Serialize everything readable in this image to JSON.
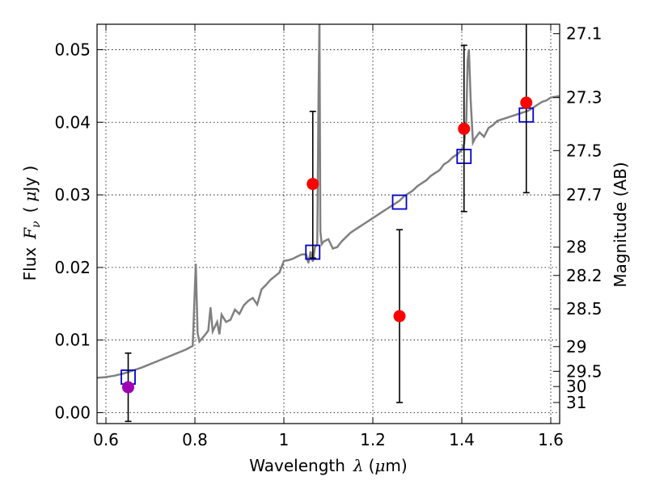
{
  "chart_data": {
    "type": "scatter",
    "xlabel": "Wavelength",
    "xlabel_symbol": "λ",
    "xlabel_unit_open": "(",
    "xlabel_unit_mu": "μ",
    "xlabel_unit_rest": "m)",
    "ylabel_prefix": "Flux",
    "ylabel_symbol": "F",
    "ylabel_sub": "ν",
    "ylabel_unit_open": "(",
    "ylabel_unit_mu": "μ",
    "ylabel_unit_rest": "Jy )",
    "y2label": "Magnitude (AB)",
    "xlim": [
      0.58,
      1.62
    ],
    "ylim": [
      -0.0015,
      0.0535
    ],
    "xticks": [
      0.6,
      0.8,
      1.0,
      1.2,
      1.4,
      1.6
    ],
    "xtick_labels": [
      "0.6",
      "0.8",
      "1",
      "1.2",
      "1.4",
      "1.6"
    ],
    "yticks": [
      0.0,
      0.01,
      0.02,
      0.03,
      0.04,
      0.05
    ],
    "ytick_labels": [
      "0.00",
      "0.01",
      "0.02",
      "0.03",
      "0.04",
      "0.05"
    ],
    "y2ticks": [
      {
        "label": "27.1",
        "flux": 0.0522
      },
      {
        "label": "27.3",
        "flux": 0.0434
      },
      {
        "label": "27.5",
        "flux": 0.0361
      },
      {
        "label": "27.7",
        "flux": 0.03
      },
      {
        "label": "28",
        "flux": 0.0228
      },
      {
        "label": "28.2",
        "flux": 0.0189
      },
      {
        "label": "28.5",
        "flux": 0.0143
      },
      {
        "label": "29",
        "flux": 0.0091
      },
      {
        "label": "29.5",
        "flux": 0.0057
      },
      {
        "label": "30",
        "flux": 0.0036
      },
      {
        "label": "31",
        "flux": 0.0014
      }
    ],
    "grid": true,
    "colors": {
      "spectrum": "#808080",
      "model_squares": "#0000cc",
      "observed_points": "#ff0000",
      "first_point": "#a000b4",
      "errorbars": "#000000"
    },
    "model_spectrum": [
      [
        0.58,
        0.0048
      ],
      [
        0.6,
        0.0049
      ],
      [
        0.62,
        0.0051
      ],
      [
        0.64,
        0.0054
      ],
      [
        0.66,
        0.0058
      ],
      [
        0.68,
        0.0062
      ],
      [
        0.7,
        0.0067
      ],
      [
        0.72,
        0.0072
      ],
      [
        0.74,
        0.0077
      ],
      [
        0.76,
        0.0082
      ],
      [
        0.78,
        0.0087
      ],
      [
        0.795,
        0.0092
      ],
      [
        0.802,
        0.0205
      ],
      [
        0.806,
        0.011
      ],
      [
        0.81,
        0.0098
      ],
      [
        0.82,
        0.0105
      ],
      [
        0.83,
        0.0113
      ],
      [
        0.835,
        0.0145
      ],
      [
        0.84,
        0.0112
      ],
      [
        0.85,
        0.0125
      ],
      [
        0.855,
        0.0108
      ],
      [
        0.86,
        0.0135
      ],
      [
        0.87,
        0.0125
      ],
      [
        0.88,
        0.0128
      ],
      [
        0.89,
        0.0142
      ],
      [
        0.9,
        0.0136
      ],
      [
        0.91,
        0.0148
      ],
      [
        0.92,
        0.0154
      ],
      [
        0.93,
        0.0158
      ],
      [
        0.94,
        0.0149
      ],
      [
        0.95,
        0.017
      ],
      [
        0.96,
        0.0176
      ],
      [
        0.97,
        0.0183
      ],
      [
        0.98,
        0.0188
      ],
      [
        0.99,
        0.0193
      ],
      [
        1.0,
        0.0209
      ],
      [
        1.01,
        0.021
      ],
      [
        1.02,
        0.0212
      ],
      [
        1.03,
        0.0215
      ],
      [
        1.04,
        0.0218
      ],
      [
        1.05,
        0.0218
      ],
      [
        1.055,
        0.0206
      ],
      [
        1.06,
        0.0222
      ],
      [
        1.065,
        0.0208
      ],
      [
        1.07,
        0.0228
      ],
      [
        1.075,
        0.0232
      ],
      [
        1.078,
        0.044
      ],
      [
        1.08,
        0.054
      ],
      [
        1.082,
        0.025
      ],
      [
        1.085,
        0.0232
      ],
      [
        1.09,
        0.0236
      ],
      [
        1.1,
        0.0239
      ],
      [
        1.11,
        0.0226
      ],
      [
        1.12,
        0.0228
      ],
      [
        1.13,
        0.0236
      ],
      [
        1.14,
        0.0242
      ],
      [
        1.15,
        0.0248
      ],
      [
        1.16,
        0.0252
      ],
      [
        1.17,
        0.0256
      ],
      [
        1.18,
        0.026
      ],
      [
        1.19,
        0.0264
      ],
      [
        1.2,
        0.0268
      ],
      [
        1.21,
        0.0272
      ],
      [
        1.22,
        0.0276
      ],
      [
        1.23,
        0.028
      ],
      [
        1.24,
        0.0284
      ],
      [
        1.25,
        0.0288
      ],
      [
        1.26,
        0.0292
      ],
      [
        1.27,
        0.0298
      ],
      [
        1.28,
        0.0302
      ],
      [
        1.29,
        0.0306
      ],
      [
        1.3,
        0.0312
      ],
      [
        1.31,
        0.0316
      ],
      [
        1.32,
        0.032
      ],
      [
        1.33,
        0.0326
      ],
      [
        1.34,
        0.033
      ],
      [
        1.35,
        0.0334
      ],
      [
        1.36,
        0.0342
      ],
      [
        1.37,
        0.0346
      ],
      [
        1.38,
        0.0352
      ],
      [
        1.39,
        0.0356
      ],
      [
        1.4,
        0.0362
      ],
      [
        1.405,
        0.037
      ],
      [
        1.41,
        0.0398
      ],
      [
        1.413,
        0.0485
      ],
      [
        1.416,
        0.05
      ],
      [
        1.42,
        0.043
      ],
      [
        1.425,
        0.0372
      ],
      [
        1.43,
        0.0378
      ],
      [
        1.44,
        0.0386
      ],
      [
        1.45,
        0.038
      ],
      [
        1.46,
        0.0392
      ],
      [
        1.47,
        0.0396
      ],
      [
        1.48,
        0.0402
      ],
      [
        1.49,
        0.0404
      ],
      [
        1.5,
        0.0406
      ],
      [
        1.51,
        0.0408
      ],
      [
        1.52,
        0.041
      ],
      [
        1.53,
        0.0412
      ],
      [
        1.54,
        0.0414
      ],
      [
        1.55,
        0.0416
      ],
      [
        1.56,
        0.042
      ],
      [
        1.57,
        0.0424
      ],
      [
        1.58,
        0.0428
      ],
      [
        1.59,
        0.043
      ],
      [
        1.6,
        0.0434
      ],
      [
        1.62,
        0.0436
      ]
    ],
    "model_photometry": [
      {
        "x": 0.65,
        "y": 0.0049
      },
      {
        "x": 1.065,
        "y": 0.0221
      },
      {
        "x": 1.26,
        "y": 0.029
      },
      {
        "x": 1.405,
        "y": 0.0353
      },
      {
        "x": 1.545,
        "y": 0.041
      }
    ],
    "observed": [
      {
        "x": 0.65,
        "y": 0.0035,
        "ylow": -0.0012,
        "yhigh": 0.0082,
        "color": "#a000b4"
      },
      {
        "x": 1.065,
        "y": 0.0315,
        "ylow": 0.0213,
        "yhigh": 0.0415,
        "color": "#ff0000"
      },
      {
        "x": 1.26,
        "y": 0.0133,
        "ylow": 0.0014,
        "yhigh": 0.0252,
        "color": "#ff0000"
      },
      {
        "x": 1.405,
        "y": 0.0391,
        "ylow": 0.0277,
        "yhigh": 0.0506,
        "color": "#ff0000"
      },
      {
        "x": 1.545,
        "y": 0.0427,
        "ylow": 0.0303,
        "yhigh": 0.054,
        "color": "#ff0000"
      }
    ]
  }
}
